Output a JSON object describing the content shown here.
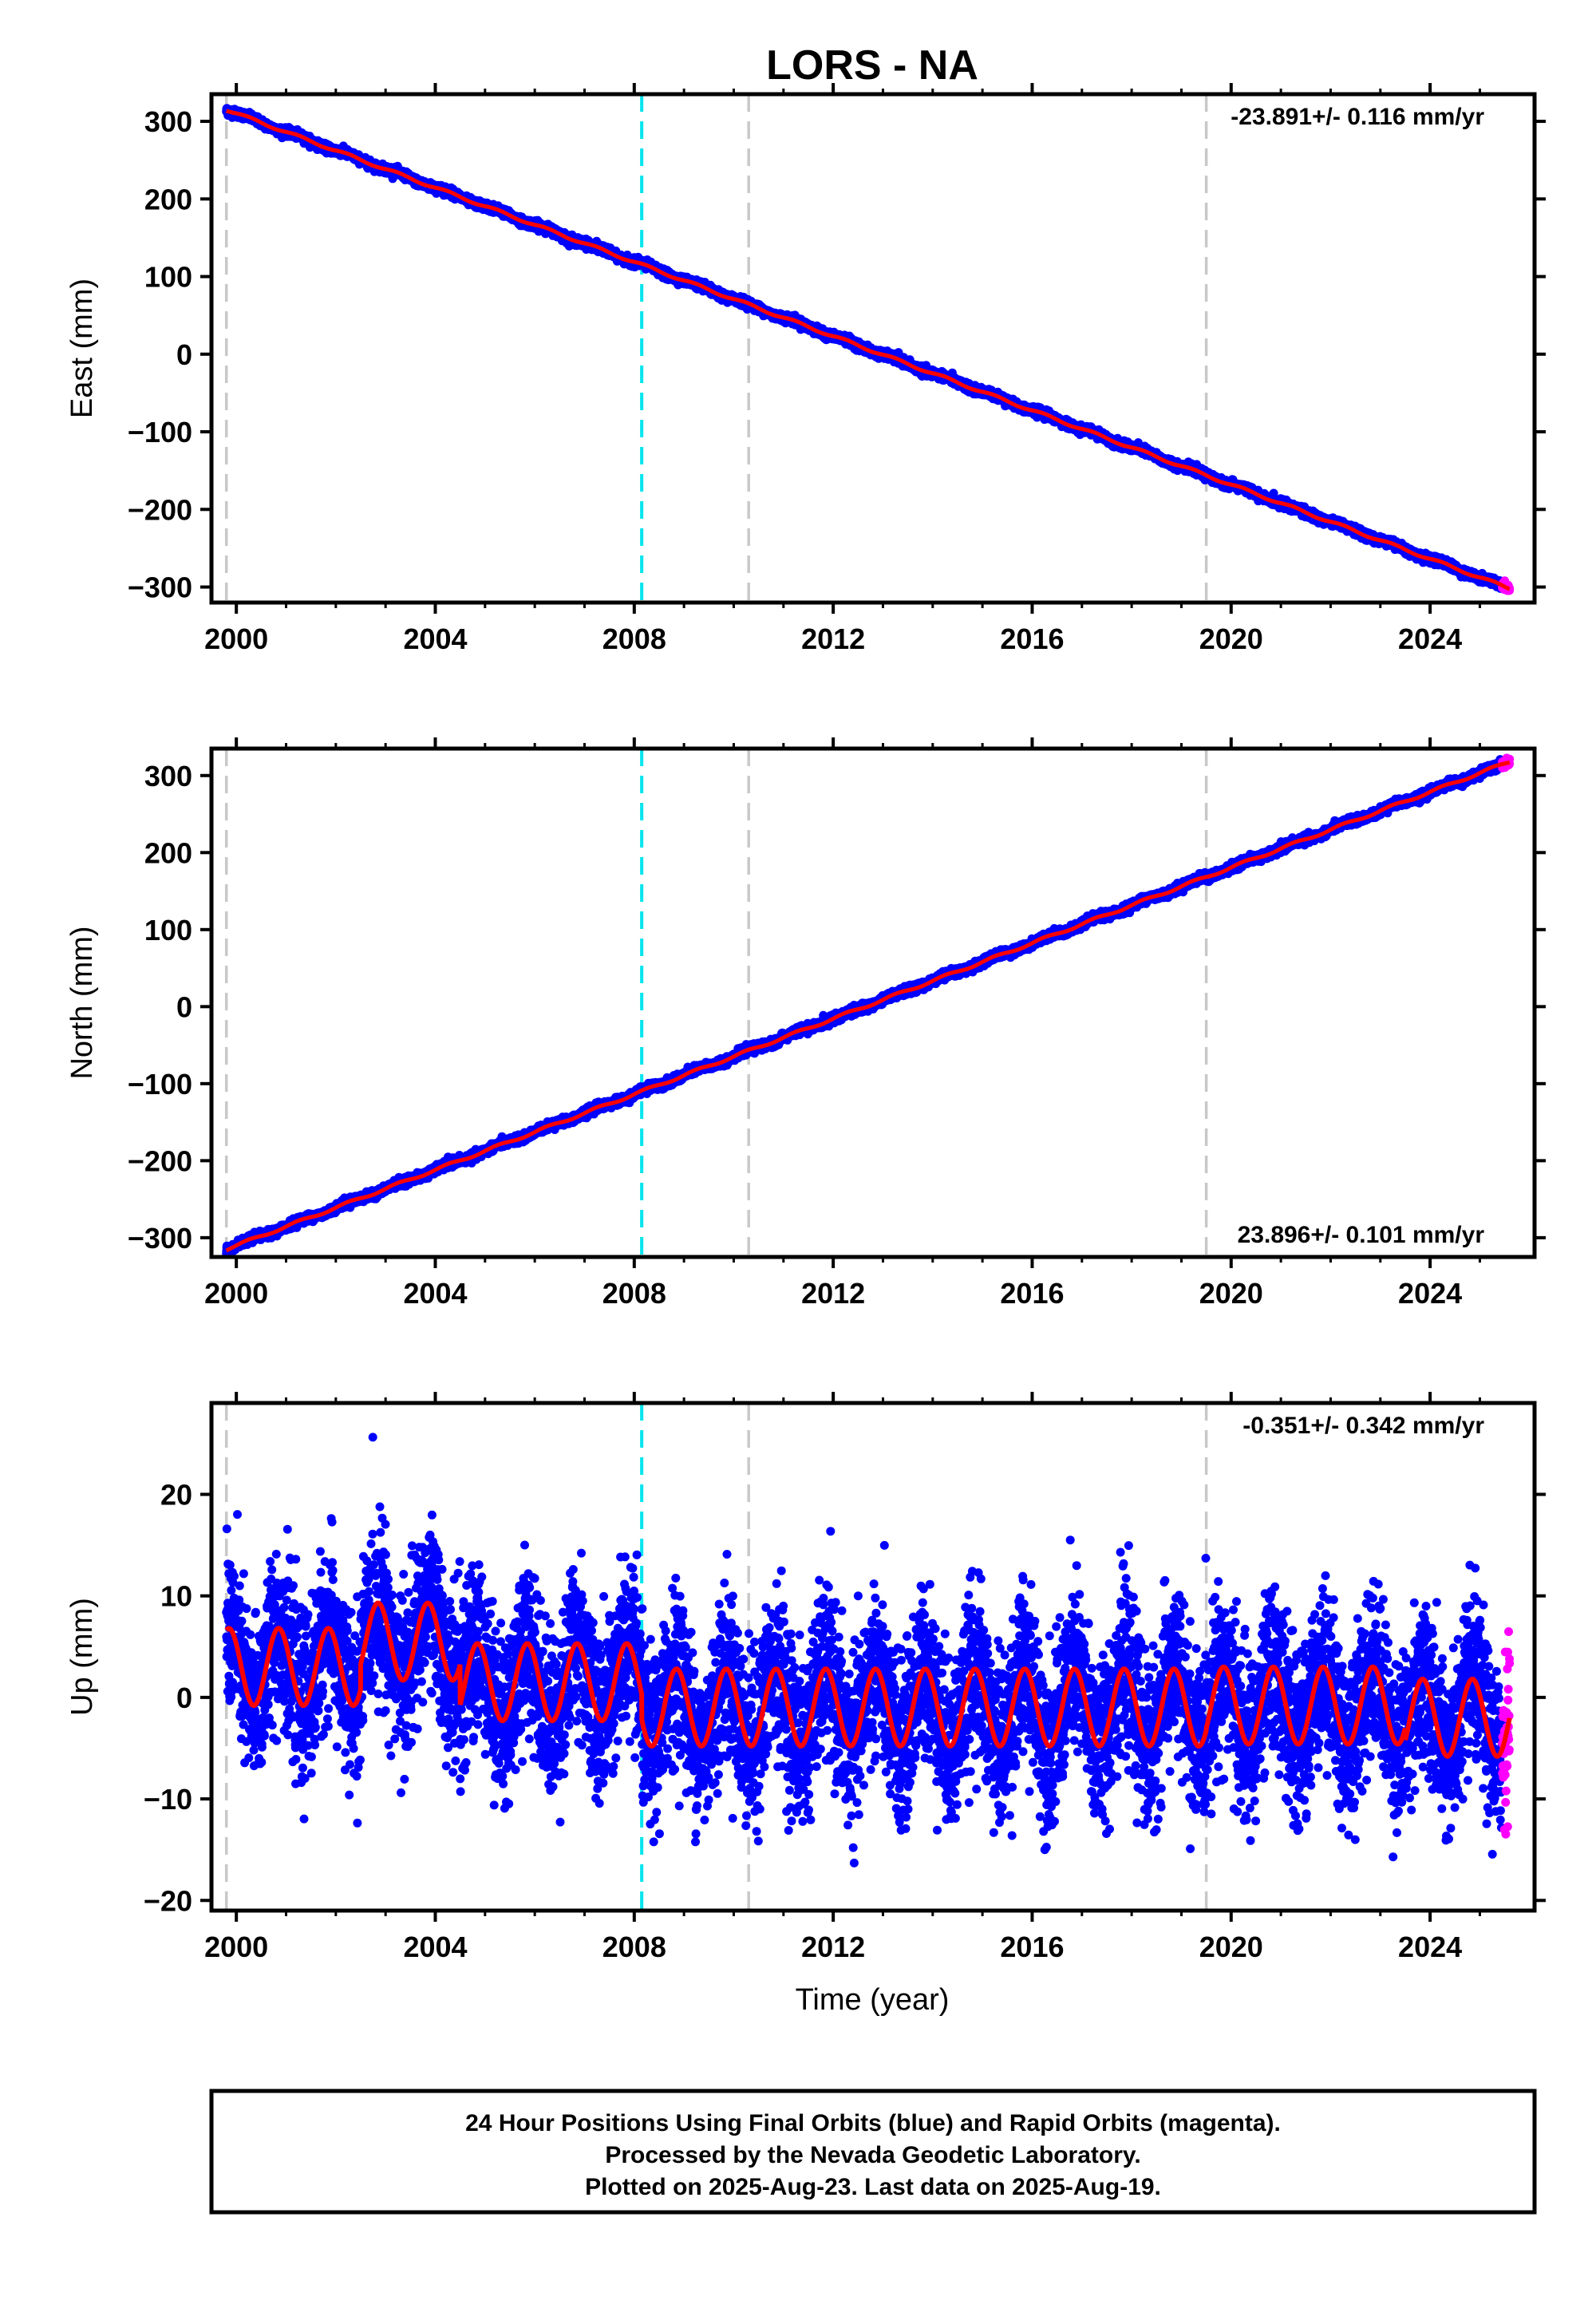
{
  "chart_data": {
    "type": "scatter",
    "title": "LORS - NA",
    "xlabel": "Time (year)",
    "x_ticks": [
      2000,
      2004,
      2008,
      2012,
      2016,
      2020,
      2024
    ],
    "xlim": [
      1999.5,
      2026.1
    ],
    "event_lines": [
      {
        "x": 1999.8,
        "color": "#c8c8c8"
      },
      {
        "x": 2008.15,
        "color": "#00e5ee"
      },
      {
        "x": 2010.3,
        "color": "#c8c8c8"
      },
      {
        "x": 2019.5,
        "color": "#c8c8c8"
      }
    ],
    "series_colors": {
      "final": "#0000ff",
      "rapid": "#ff00ff",
      "model": "#ff0000"
    },
    "panels": [
      {
        "component": "east",
        "ylabel": "East (mm)",
        "ylim": [
          -320,
          335
        ],
        "y_ticks": [
          300,
          200,
          100,
          0,
          -100,
          -200,
          -300
        ],
        "y_tick_labels": [
          "300",
          "200",
          "100",
          "0",
          "−100",
          "−200",
          "−300"
        ],
        "rate_label": "-23.891+/- 0.116 mm/yr",
        "rate_position": "top-right",
        "x_start": 1999.8,
        "x_end": 2025.6,
        "y_start": 315,
        "y_end": -302,
        "rapid_start": 2025.45,
        "noise_mm": 2.5
      },
      {
        "component": "north",
        "ylabel": "North (mm)",
        "ylim": [
          -325,
          335
        ],
        "y_ticks": [
          300,
          200,
          100,
          0,
          -100,
          -200,
          -300
        ],
        "y_tick_labels": [
          "300",
          "200",
          "100",
          "0",
          "−100",
          "−200",
          "−300"
        ],
        "rate_label": "23.896+/- 0.101 mm/yr",
        "rate_position": "bottom-right",
        "x_start": 1999.8,
        "x_end": 2025.6,
        "y_start": -315,
        "y_end": 318,
        "rapid_start": 2025.45,
        "noise_mm": 2.5
      },
      {
        "component": "up",
        "ylabel": "Up (mm)",
        "ylim": [
          -21,
          29
        ],
        "y_ticks": [
          20,
          10,
          0,
          -10,
          -20
        ],
        "y_tick_labels": [
          "20",
          "10",
          "0",
          "−10",
          "−20"
        ],
        "rate_label": "-0.351+/- 0.342 mm/yr",
        "rate_position": "top-right",
        "x_start": 1999.8,
        "x_end": 2025.6,
        "rapid_start": 2025.45,
        "seasonal_amplitude_mm": 3.8,
        "offsets": [
          {
            "from": 1999.8,
            "to": 2002.5,
            "mean": 3.0
          },
          {
            "from": 2002.5,
            "to": 2004.5,
            "mean": 5.5
          },
          {
            "from": 2004.5,
            "to": 2008.15,
            "mean": 1.5
          },
          {
            "from": 2008.15,
            "to": 2019.5,
            "mean": -1.0
          },
          {
            "from": 2019.5,
            "to": 2023.5,
            "mean": -0.8
          },
          {
            "from": 2023.5,
            "to": 2025.6,
            "mean": -2.0
          }
        ],
        "noise_mm": 4.0
      }
    ]
  },
  "footer": {
    "line1": "24 Hour Positions Using Final Orbits (blue) and Rapid Orbits (magenta).",
    "line2": "Processed by the Nevada Geodetic Laboratory.",
    "line3": "Plotted on 2025-Aug-23. Last data on 2025-Aug-19."
  }
}
